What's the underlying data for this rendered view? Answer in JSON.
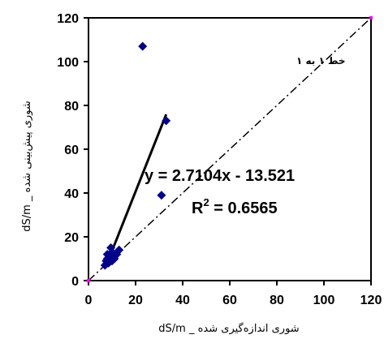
{
  "chart_data": {
    "type": "scatter",
    "xlabel": "شوری اندازه‌گیری شده _ dS/m",
    "ylabel": "شوری پیش‌بینی شده _ dS/m",
    "xlim": [
      0,
      120
    ],
    "ylim": [
      0,
      120
    ],
    "xticks": [
      0,
      20,
      40,
      60,
      80,
      100,
      120
    ],
    "yticks": [
      0,
      20,
      40,
      60,
      80,
      100,
      120
    ],
    "series": [
      {
        "points": [
          [
            7,
            7
          ],
          [
            7.5,
            9
          ],
          [
            8,
            10
          ],
          [
            8,
            12
          ],
          [
            8.5,
            8
          ],
          [
            9,
            11
          ],
          [
            9.5,
            15
          ],
          [
            10,
            9
          ],
          [
            10,
            13
          ],
          [
            11,
            10
          ],
          [
            12,
            12
          ],
          [
            13,
            14
          ],
          [
            23,
            107
          ],
          [
            31,
            39
          ],
          [
            33,
            73
          ]
        ]
      }
    ],
    "trendline": {
      "equation": "y = 2.7104x - 13.521",
      "r2_label": "R",
      "r2_exp": "2",
      "r2_value": " = 0.6565",
      "x_range": [
        7.5,
        33
      ]
    },
    "reference_line": {
      "label": "خط ۱ به ۱"
    },
    "colors": {
      "marker": "#00008b",
      "line": "#000000"
    }
  }
}
